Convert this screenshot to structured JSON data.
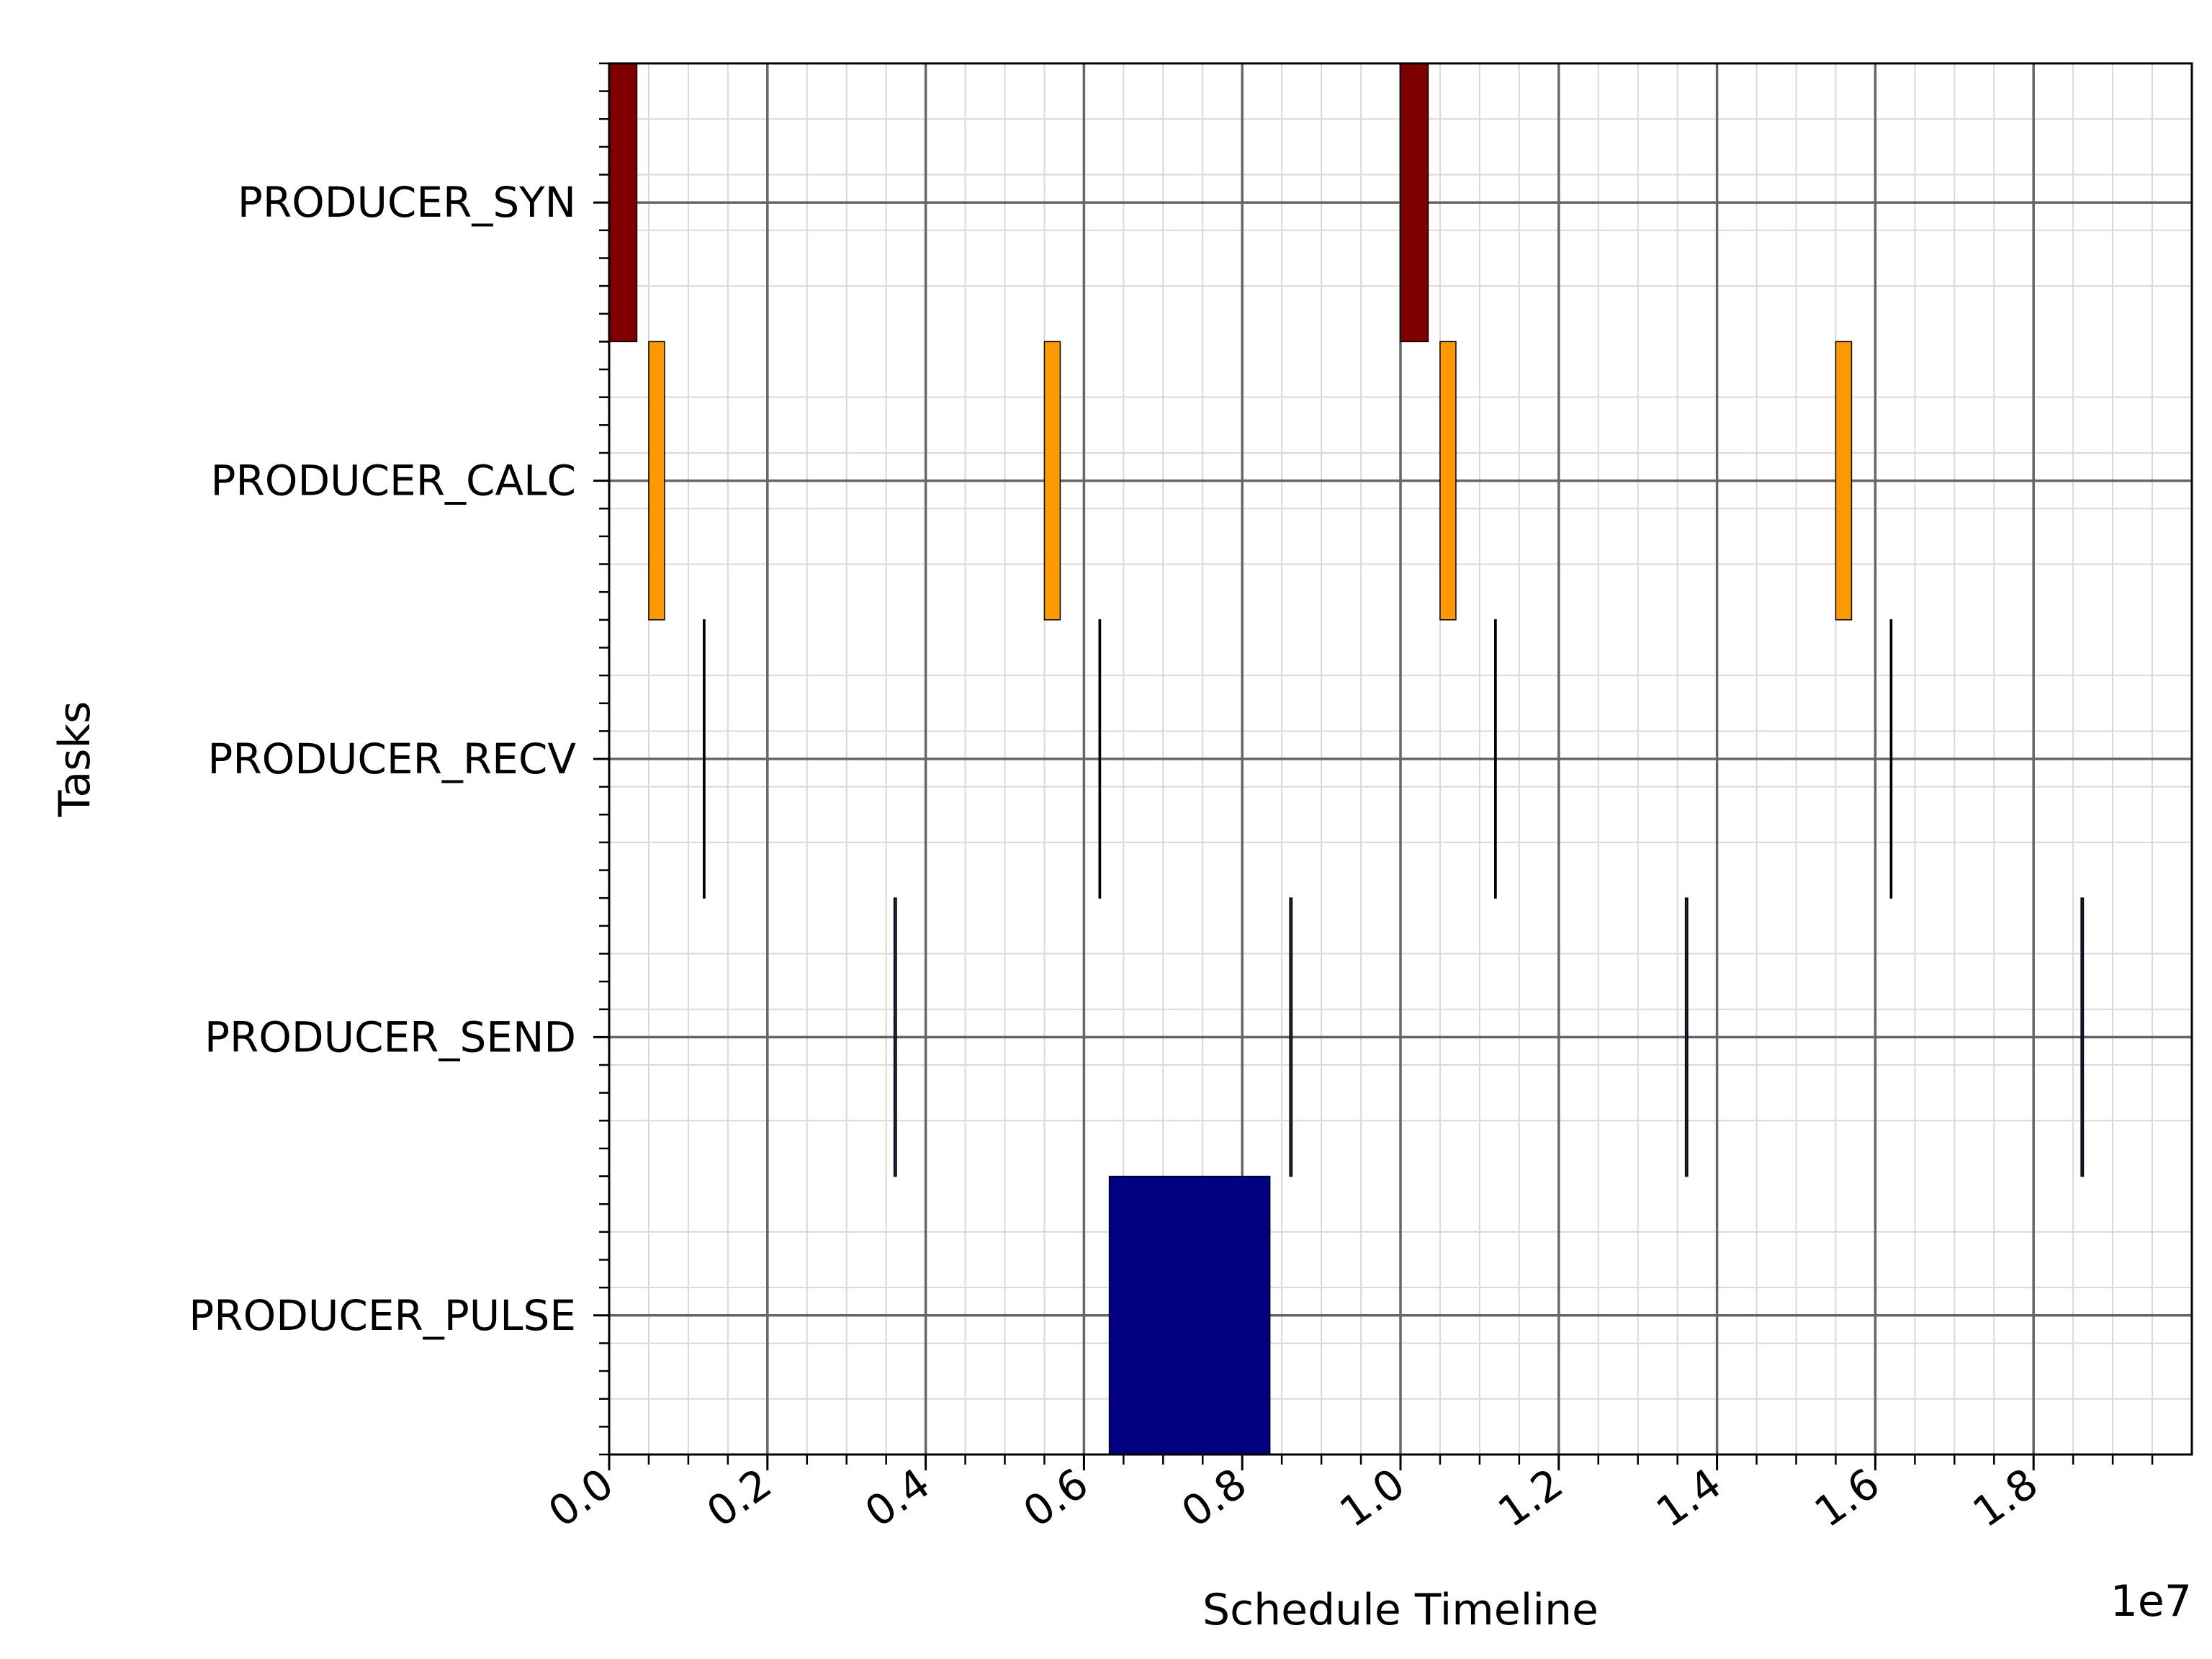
{
  "chart_data": {
    "type": "gantt",
    "xlabel": "Schedule Timeline",
    "ylabel": "Tasks",
    "x_offset_text": "1e7",
    "xlim": [
      0,
      20000000
    ],
    "x_ticks": [
      0,
      2000000,
      4000000,
      6000000,
      8000000,
      10000000,
      12000000,
      14000000,
      16000000,
      18000000
    ],
    "x_tick_labels": [
      "0.0",
      "0.2",
      "0.4",
      "0.6",
      "0.8",
      "1.0",
      "1.2",
      "1.4",
      "1.6",
      "1.8"
    ],
    "grid": true,
    "tasks": [
      "PRODUCER_SYN",
      "PRODUCER_CALC",
      "PRODUCER_RECV",
      "PRODUCER_SEND",
      "PRODUCER_PULSE"
    ],
    "series": [
      {
        "task": "PRODUCER_SYN",
        "color": "#800000",
        "segments": [
          {
            "start": 0,
            "end": 350000
          },
          {
            "start": 10000000,
            "end": 10350000
          }
        ]
      },
      {
        "task": "PRODUCER_CALC",
        "color": "#ff9900",
        "segments": [
          {
            "start": 500000,
            "end": 700000
          },
          {
            "start": 5500000,
            "end": 5700000
          },
          {
            "start": 10500000,
            "end": 10700000
          },
          {
            "start": 15500000,
            "end": 15700000
          }
        ]
      },
      {
        "task": "PRODUCER_RECV",
        "color": "#000000",
        "segments": [
          {
            "start": 1190000,
            "end": 1210000
          },
          {
            "start": 6190000,
            "end": 6210000
          },
          {
            "start": 11190000,
            "end": 11210000
          },
          {
            "start": 16190000,
            "end": 16210000
          }
        ]
      },
      {
        "task": "PRODUCER_SEND",
        "color": "#1a2a4a",
        "segments": [
          {
            "start": 3600000,
            "end": 3630000
          },
          {
            "start": 8600000,
            "end": 8630000
          },
          {
            "start": 13600000,
            "end": 13630000
          },
          {
            "start": 18600000,
            "end": 18630000
          }
        ]
      },
      {
        "task": "PRODUCER_PULSE",
        "color": "#000080",
        "segments": [
          {
            "start": 6320000,
            "end": 8350000
          }
        ]
      }
    ]
  }
}
